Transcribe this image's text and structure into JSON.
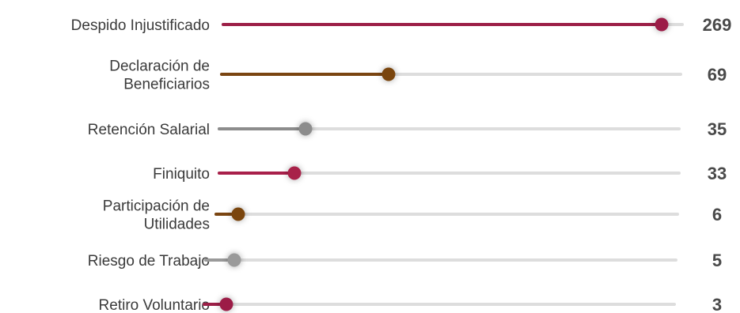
{
  "chart_data": {
    "type": "bar",
    "style": "lollipop",
    "categories": [
      [
        "Despido Injustificado"
      ],
      [
        "Declaración de",
        "Beneficiarios"
      ],
      [
        "Retención Salarial"
      ],
      [
        "Finiquito"
      ],
      [
        "Participación de",
        "Utilidades"
      ],
      [
        "Riesgo de Trabajo"
      ],
      [
        "Retiro Voluntario"
      ]
    ],
    "values": [
      269,
      69,
      35,
      33,
      6,
      5,
      3
    ],
    "value_labels": [
      "269",
      "69",
      "35",
      "33",
      "6",
      "5",
      "3"
    ],
    "colors": [
      "#9c1f47",
      "#7a4511",
      "#8c8c8c",
      "#a8204a",
      "#7a4511",
      "#9a9a9a",
      "#9c1f47"
    ],
    "track_color": "#dddddd",
    "xlim": [
      0,
      269
    ],
    "grid": false,
    "legend": "none"
  }
}
